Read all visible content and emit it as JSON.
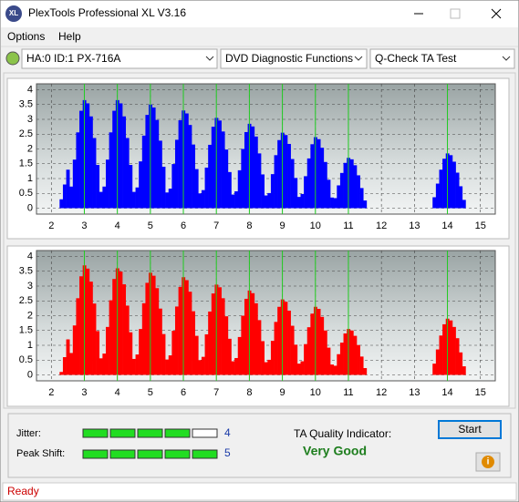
{
  "window": {
    "title": "PlexTools Professional XL V3.16",
    "logo": "XL"
  },
  "menu": [
    "Options",
    "Help"
  ],
  "toolbar": {
    "drive": "HA:0 ID:1  PX-716A",
    "function": "DVD Diagnostic Functions",
    "test": "Q-Check TA Test"
  },
  "chart_data": [
    {
      "type": "bar",
      "color": "#0000ff",
      "target_color": "#22cc22",
      "xlim": [
        1.55,
        15.45
      ],
      "ylim": [
        -0.2,
        4.2
      ],
      "xticks": [
        2,
        3,
        4,
        5,
        6,
        7,
        8,
        9,
        10,
        11,
        12,
        13,
        14,
        15
      ],
      "yticks": [
        0,
        0.5,
        1,
        1.5,
        2,
        2.5,
        3,
        3.5,
        4
      ],
      "grid": true,
      "target_lines": [
        3,
        4,
        5,
        6,
        7,
        8,
        9,
        10,
        11,
        14
      ],
      "x": [
        2.3,
        2.4,
        2.5,
        2.6,
        2.7,
        2.8,
        2.9,
        3,
        3.1,
        3.2,
        3.3,
        3.4,
        3.5,
        3.6,
        3.7,
        3.8,
        3.9,
        4,
        4.1,
        4.2,
        4.3,
        4.4,
        4.5,
        4.6,
        4.7,
        4.8,
        4.9,
        5,
        5.1,
        5.2,
        5.3,
        5.4,
        5.5,
        5.6,
        5.7,
        5.8,
        5.9,
        6,
        6.1,
        6.2,
        6.3,
        6.4,
        6.5,
        6.6,
        6.7,
        6.8,
        6.9,
        7,
        7.1,
        7.2,
        7.3,
        7.4,
        7.5,
        7.6,
        7.7,
        7.8,
        7.9,
        8,
        8.1,
        8.2,
        8.3,
        8.4,
        8.5,
        8.6,
        8.7,
        8.8,
        8.9,
        9,
        9.1,
        9.2,
        9.3,
        9.4,
        9.5,
        9.6,
        9.7,
        9.8,
        9.9,
        10,
        10.1,
        10.2,
        10.3,
        10.4,
        10.5,
        10.6,
        10.7,
        10.8,
        10.9,
        11,
        11.1,
        11.2,
        11.3,
        11.4,
        11.5,
        13.6,
        13.7,
        13.8,
        13.9,
        14,
        14.1,
        14.2,
        14.3,
        14.4,
        14.5
      ],
      "values": [
        0.3,
        0.8,
        1.3,
        0.73,
        1.64,
        2.56,
        3.29,
        3.65,
        3.54,
        3.1,
        2.37,
        1.46,
        0.55,
        0.73,
        1.64,
        2.56,
        3.29,
        3.65,
        3.54,
        3.1,
        2.37,
        1.46,
        0.55,
        0.7,
        1.58,
        2.45,
        3.15,
        3.5,
        3.4,
        2.98,
        2.28,
        1.4,
        0.53,
        0.66,
        1.49,
        2.31,
        2.97,
        3.3,
        3.2,
        2.81,
        2.15,
        1.32,
        0.5,
        0.61,
        1.37,
        2.14,
        2.75,
        3.05,
        2.96,
        2.59,
        1.98,
        1.22,
        0.46,
        0.57,
        1.28,
        2.0,
        2.57,
        2.85,
        2.76,
        2.42,
        1.85,
        1.14,
        0.43,
        0.51,
        1.15,
        1.79,
        2.3,
        2.55,
        2.47,
        2.17,
        1.66,
        1.02,
        0.38,
        0.48,
        1.08,
        1.68,
        2.16,
        2.4,
        2.33,
        2.04,
        1.56,
        0.96,
        0.36,
        0.34,
        0.77,
        1.19,
        1.53,
        1.7,
        1.65,
        1.45,
        1.11,
        0.68,
        0.26,
        0.37,
        0.83,
        1.3,
        1.67,
        1.85,
        1.79,
        1.57,
        1.2,
        0.74,
        0.28
      ]
    },
    {
      "type": "bar",
      "color": "#ff0000",
      "target_color": "#22cc22",
      "xlim": [
        1.55,
        15.45
      ],
      "ylim": [
        -0.2,
        4.2
      ],
      "xticks": [
        2,
        3,
        4,
        5,
        6,
        7,
        8,
        9,
        10,
        11,
        12,
        13,
        14,
        15
      ],
      "yticks": [
        0,
        0.5,
        1,
        1.5,
        2,
        2.5,
        3,
        3.5,
        4
      ],
      "grid": true,
      "target_lines": [
        3,
        4,
        5,
        6,
        7,
        8,
        9,
        10,
        11,
        14
      ],
      "x": [
        2.3,
        2.4,
        2.5,
        2.6,
        2.7,
        2.8,
        2.9,
        3,
        3.1,
        3.2,
        3.3,
        3.4,
        3.5,
        3.6,
        3.7,
        3.8,
        3.9,
        4,
        4.1,
        4.2,
        4.3,
        4.4,
        4.5,
        4.6,
        4.7,
        4.8,
        4.9,
        5,
        5.1,
        5.2,
        5.3,
        5.4,
        5.5,
        5.6,
        5.7,
        5.8,
        5.9,
        6,
        6.1,
        6.2,
        6.3,
        6.4,
        6.5,
        6.6,
        6.7,
        6.8,
        6.9,
        7,
        7.1,
        7.2,
        7.3,
        7.4,
        7.5,
        7.6,
        7.7,
        7.8,
        7.9,
        8,
        8.1,
        8.2,
        8.3,
        8.4,
        8.5,
        8.6,
        8.7,
        8.8,
        8.9,
        9,
        9.1,
        9.2,
        9.3,
        9.4,
        9.5,
        9.6,
        9.7,
        9.8,
        9.9,
        10,
        10.1,
        10.2,
        10.3,
        10.4,
        10.5,
        10.6,
        10.7,
        10.8,
        10.9,
        11,
        11.1,
        11.2,
        11.3,
        11.4,
        11.5,
        13.6,
        13.7,
        13.8,
        13.9,
        14,
        14.1,
        14.2,
        14.3,
        14.4,
        14.5
      ],
      "values": [
        0.1,
        0.6,
        1.2,
        0.74,
        1.67,
        2.59,
        3.33,
        3.7,
        3.59,
        3.15,
        2.41,
        1.48,
        0.56,
        0.72,
        1.62,
        2.52,
        3.24,
        3.6,
        3.49,
        3.06,
        2.34,
        1.44,
        0.54,
        0.69,
        1.55,
        2.42,
        3.11,
        3.45,
        3.35,
        2.93,
        2.24,
        1.38,
        0.52,
        0.66,
        1.49,
        2.31,
        2.97,
        3.3,
        3.2,
        2.81,
        2.15,
        1.32,
        0.5,
        0.61,
        1.37,
        2.14,
        2.75,
        3.05,
        2.96,
        2.59,
        1.98,
        1.22,
        0.46,
        0.57,
        1.28,
        2.0,
        2.57,
        2.85,
        2.76,
        2.42,
        1.85,
        1.14,
        0.43,
        0.51,
        1.15,
        1.79,
        2.3,
        2.55,
        2.47,
        2.17,
        1.66,
        1.02,
        0.38,
        0.46,
        1.04,
        1.61,
        2.07,
        2.3,
        2.23,
        1.96,
        1.5,
        0.92,
        0.35,
        0.31,
        0.7,
        1.09,
        1.4,
        1.55,
        1.5,
        1.32,
        1.01,
        0.62,
        0.23,
        0.38,
        0.86,
        1.33,
        1.71,
        1.9,
        1.84,
        1.62,
        1.24,
        0.76,
        0.29
      ]
    }
  ],
  "panel": {
    "jitter_label": "Jitter:",
    "jitter": 4,
    "peak_label": "Peak Shift:",
    "peak": 5,
    "ta_label": "TA Quality Indicator:",
    "ta_result": "Very Good",
    "start": "Start",
    "info": "i"
  },
  "status": "Ready"
}
